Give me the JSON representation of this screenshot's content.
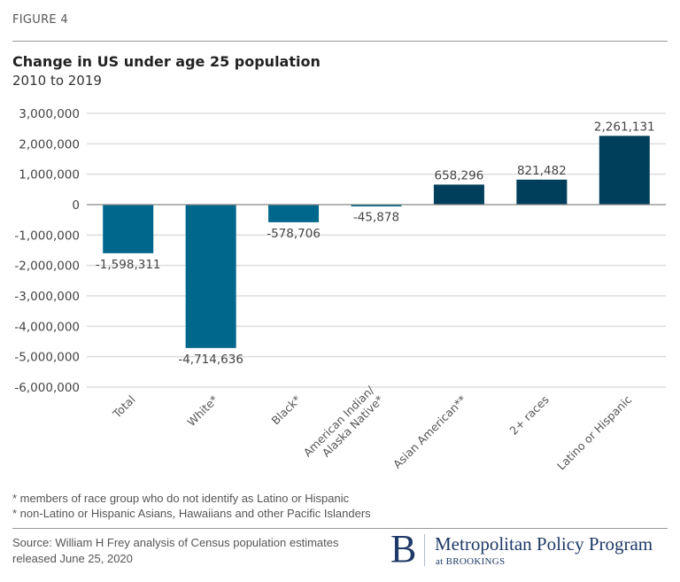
{
  "figure_label": "FIGURE 4",
  "chart_data": {
    "type": "bar",
    "title": "Change in US under age 25 population",
    "subtitle": "2010 to 2019",
    "xlabel": "",
    "ylabel": "",
    "categories": [
      "Total",
      "White*",
      "Black*",
      "American Indian/ Alaska Native*",
      "Asian American**",
      "2+ races",
      "Latino or Hispanic"
    ],
    "category_lines": [
      [
        "Total"
      ],
      [
        "White*"
      ],
      [
        "Black*"
      ],
      [
        "American Indian/",
        "Alaska Native*"
      ],
      [
        "Asian American**"
      ],
      [
        "2+ races"
      ],
      [
        "Latino or Hispanic"
      ]
    ],
    "values": [
      -1598311,
      -4714636,
      -578706,
      -45878,
      658296,
      821482,
      2261131
    ],
    "data_labels": [
      "-1,598,311",
      "-4,714,636",
      "-578,706",
      "-45,878",
      "658,296",
      "821,482",
      "2,261,131"
    ],
    "ylim": [
      -6000000,
      3000000
    ],
    "yticks": [
      3000000,
      2000000,
      1000000,
      0,
      -1000000,
      -2000000,
      -3000000,
      -4000000,
      -5000000,
      -6000000
    ],
    "ytick_labels": [
      "3,000,000",
      "2,000,000",
      "1,000,000",
      "0",
      "-1,000,000",
      "-2,000,000",
      "-3,000,000",
      "-4,000,000",
      "-5,000,000",
      "-6,000,000"
    ],
    "grid": true,
    "legend": "none",
    "colors": {
      "negative": "#00678c",
      "positive": "#003f5c",
      "grid": "#dddddd",
      "axis": "#888888"
    }
  },
  "notes": [
    "* members of race group who do not identify as Latino or Hispanic",
    "* non-Latino or Hispanic Asians, Hawaiians and other Pacific Islanders"
  ],
  "source": {
    "line1": "Source: William H Frey analysis of  Census population estimates",
    "line2": "released June 25, 2020"
  },
  "logo": {
    "mark": "B",
    "name": "Metropolitan Policy Program",
    "sub": "at BROOKINGS"
  }
}
